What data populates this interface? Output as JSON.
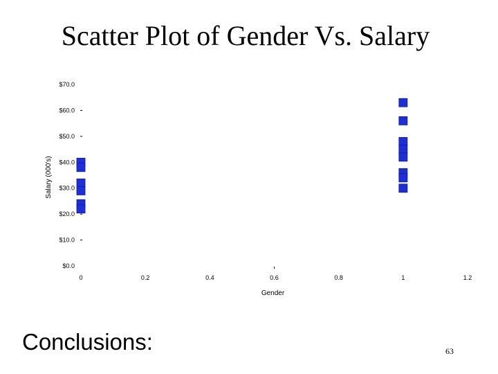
{
  "slide": {
    "title": "Scatter Plot of Gender Vs. Salary",
    "conclusions_label": "Conclusions:",
    "page_number": "63"
  },
  "chart_data": {
    "type": "scatter",
    "title": "",
    "xlabel": "Gender",
    "ylabel": "Salary (000's)",
    "xlim": [
      0,
      1.2
    ],
    "ylim": [
      0,
      70
    ],
    "x_ticks": [
      "0",
      "0.2",
      "0.4",
      "0.6",
      "0.8",
      "1",
      "1.2"
    ],
    "y_ticks": [
      "$0.0",
      "$10.0",
      "$20.0",
      "$30.0",
      "$40.0",
      "$50.0",
      "$60.0",
      "$70.0"
    ],
    "grid": false,
    "marker_color": "#1f2fd6",
    "series": [
      {
        "x": [
          0,
          0,
          0,
          0,
          0,
          0,
          1,
          1,
          1,
          1,
          1,
          1,
          1,
          1
        ],
        "y": [
          40,
          38,
          32,
          29,
          24,
          22,
          63,
          56,
          48,
          45,
          42,
          36,
          34,
          30
        ]
      }
    ]
  }
}
